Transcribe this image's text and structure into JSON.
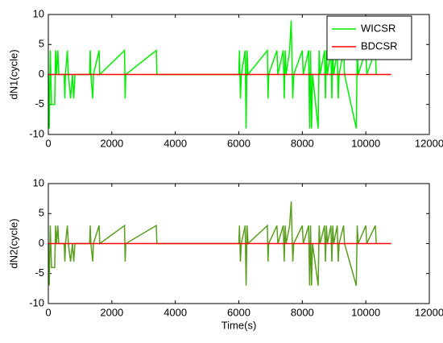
{
  "chart_data": [
    {
      "type": "line",
      "ylabel": "dN1(cycle)",
      "xlim": [
        0,
        12000
      ],
      "xticks": [
        0,
        2000,
        4000,
        6000,
        8000,
        10000,
        12000
      ],
      "ylim": [
        -10,
        10
      ],
      "yticks": [
        -10,
        -5,
        0,
        5,
        10
      ],
      "legend": "upper right",
      "series": [
        {
          "name": "WICSR",
          "color": "#00ee00",
          "x": [
            0,
            30,
            60,
            100,
            200,
            230,
            260,
            300,
            330,
            500,
            520,
            540,
            600,
            630,
            700,
            760,
            800,
            840,
            1300,
            1320,
            1340,
            1400,
            1420,
            1600,
            1620,
            2400,
            2420,
            2440,
            3400,
            3420,
            6000,
            6020,
            6050,
            6080,
            6200,
            6230,
            6260,
            6290,
            6900,
            6920,
            6940,
            7200,
            7230,
            7400,
            7430,
            7460,
            7490,
            7600,
            7650,
            7700,
            7730,
            8000,
            8030,
            8200,
            8230,
            8260,
            8290,
            8320,
            8500,
            8530,
            8560,
            8700,
            8730,
            8760,
            8790,
            8900,
            8930,
            8960,
            8990,
            9100,
            9130,
            9160,
            9300,
            9330,
            9700,
            9730,
            9760,
            10000,
            10030,
            10300,
            10330
          ],
          "values": [
            0,
            -9,
            4,
            -5,
            -5,
            4,
            0,
            4,
            0,
            0,
            -4,
            0,
            4,
            0,
            -4,
            0,
            -4,
            0,
            0,
            4,
            0,
            -4,
            0,
            4,
            0,
            4,
            -4,
            0,
            4,
            0,
            0,
            4,
            -4,
            0,
            4,
            -9,
            4,
            0,
            4,
            -4,
            0,
            4,
            0,
            4,
            -4,
            4,
            0,
            4,
            9,
            -4,
            0,
            4,
            0,
            4,
            -9,
            4,
            -9,
            0,
            -9,
            4,
            0,
            4,
            -4,
            4,
            0,
            4,
            -4,
            4,
            0,
            4,
            -4,
            0,
            4,
            0,
            -9,
            4,
            0,
            4,
            0,
            4,
            0
          ]
        },
        {
          "name": "BDCSR",
          "color": "#ff0000",
          "x": [
            0,
            10800
          ],
          "values": [
            0,
            0
          ]
        }
      ]
    },
    {
      "type": "line",
      "ylabel": "dN2(cycle)",
      "xlabel": "Time(s)",
      "xlim": [
        0,
        12000
      ],
      "xticks": [
        0,
        2000,
        4000,
        6000,
        8000,
        10000,
        12000
      ],
      "ylim": [
        -10,
        10
      ],
      "yticks": [
        -10,
        -5,
        0,
        5,
        10
      ],
      "series": [
        {
          "color": "#5a9e1e",
          "x": [
            0,
            30,
            60,
            100,
            200,
            230,
            260,
            300,
            330,
            500,
            520,
            540,
            600,
            630,
            700,
            760,
            800,
            840,
            1300,
            1320,
            1340,
            1400,
            1420,
            1600,
            1620,
            2400,
            2420,
            2440,
            3400,
            3420,
            6000,
            6020,
            6050,
            6080,
            6200,
            6230,
            6260,
            6290,
            6900,
            6920,
            6940,
            7200,
            7230,
            7400,
            7430,
            7460,
            7490,
            7600,
            7650,
            7700,
            7730,
            8000,
            8030,
            8200,
            8230,
            8260,
            8290,
            8320,
            8500,
            8530,
            8560,
            8700,
            8730,
            8760,
            8790,
            8900,
            8930,
            8960,
            8990,
            9100,
            9130,
            9160,
            9300,
            9330,
            9700,
            9730,
            9760,
            10000,
            10030,
            10300,
            10330
          ],
          "values": [
            0,
            -7,
            3,
            -4,
            -4,
            3,
            0,
            3,
            0,
            0,
            -3,
            0,
            3,
            0,
            -3,
            0,
            -3,
            0,
            0,
            3,
            0,
            -3,
            0,
            3,
            0,
            3,
            -3,
            0,
            3,
            0,
            0,
            3,
            -3,
            0,
            3,
            -7,
            3,
            0,
            3,
            -3,
            0,
            3,
            0,
            3,
            -3,
            3,
            0,
            3,
            7,
            -3,
            0,
            3,
            0,
            3,
            -7,
            3,
            -7,
            0,
            -7,
            3,
            0,
            3,
            -3,
            3,
            0,
            3,
            -3,
            3,
            0,
            3,
            -3,
            0,
            3,
            0,
            -7,
            3,
            0,
            3,
            0,
            3,
            0
          ]
        },
        {
          "color": "#ff0000",
          "x": [
            0,
            10800
          ],
          "values": [
            0,
            0
          ]
        }
      ]
    }
  ]
}
